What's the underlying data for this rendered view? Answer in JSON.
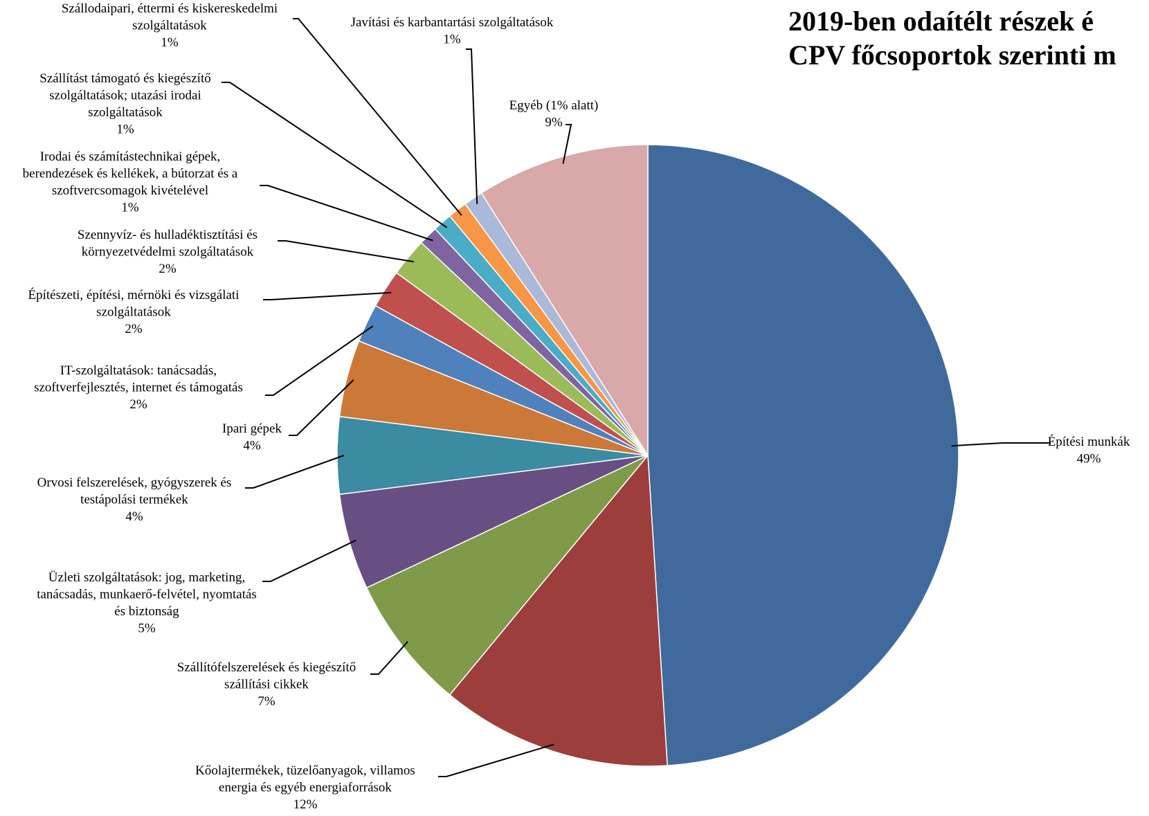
{
  "chart_data": {
    "type": "pie",
    "title": "2019-ben odaítélt részek é… CPV főcsoportok szerinti m…",
    "title_lines": [
      "2019-ben odaítélt részek é",
      "CPV főcsoportok szerinti m"
    ],
    "start_angle_deg": 0,
    "direction": "clockwise",
    "slices": [
      {
        "label_lines": [
          "Építési munkák"
        ],
        "value": 49,
        "pct_label": "49%",
        "color": "#416a9c"
      },
      {
        "label_lines": [
          "Kőolajtermékek, tüzelőanyagok, villamos",
          "energia és egyéb energiaforrások"
        ],
        "value": 12,
        "pct_label": "12%",
        "color": "#9c3f3c"
      },
      {
        "label_lines": [
          "Szállítófelszerelések és kiegészítő",
          "szállítási cikkek"
        ],
        "value": 7,
        "pct_label": "7%",
        "color": "#7f9a48"
      },
      {
        "label_lines": [
          "Üzleti szolgáltatások: jog, marketing,",
          "tanácsadás, munkaerő-felvétel, nyomtatás",
          "és biztonság"
        ],
        "value": 5,
        "pct_label": "5%",
        "color": "#674f84"
      },
      {
        "label_lines": [
          "Orvosi felszerelések, gyógyszerek és",
          "testápolási termékek"
        ],
        "value": 4,
        "pct_label": "4%",
        "color": "#3b8ba2"
      },
      {
        "label_lines": [
          "Ipari gépek"
        ],
        "value": 4,
        "pct_label": "4%",
        "color": "#cc7838"
      },
      {
        "label_lines": [
          "IT-szolgáltatások: tanácsadás,",
          "szoftverfejlesztés, internet és támogatás"
        ],
        "value": 2,
        "pct_label": "2%",
        "color": "#4f81bd"
      },
      {
        "label_lines": [
          "Építészeti, építési, mérnöki és vizsgálati",
          "szolgáltatások"
        ],
        "value": 2,
        "pct_label": "2%",
        "color": "#c0504d"
      },
      {
        "label_lines": [
          "Szennyvíz- és hulladéktisztítási és",
          "környezetvédelmi szolgáltatások"
        ],
        "value": 2,
        "pct_label": "2%",
        "color": "#9bbb59"
      },
      {
        "label_lines": [
          "Irodai és számítástechnikai gépek,",
          "berendezések és kellékek, a bútorzat és a",
          "szoftvercsomagok kivételével"
        ],
        "value": 1,
        "pct_label": "1%",
        "color": "#8064a2"
      },
      {
        "label_lines": [
          "Szállítást támogató és kiegészítő",
          "szolgáltatások; utazási irodai",
          "szolgáltatások"
        ],
        "value": 1,
        "pct_label": "1%",
        "color": "#4bacc6"
      },
      {
        "label_lines": [
          "Szállodaipari, éttermi és kiskereskedelmi",
          "szolgáltatások"
        ],
        "value": 1,
        "pct_label": "1%",
        "color": "#f79646"
      },
      {
        "label_lines": [
          "Javítási és karbantartási szolgáltatások"
        ],
        "value": 1,
        "pct_label": "1%",
        "color": "#aab9d7"
      },
      {
        "label_lines": [
          "Egyéb (1% alatt)"
        ],
        "value": 9,
        "pct_label": "9%",
        "color": "#d9a8a8"
      }
    ]
  }
}
